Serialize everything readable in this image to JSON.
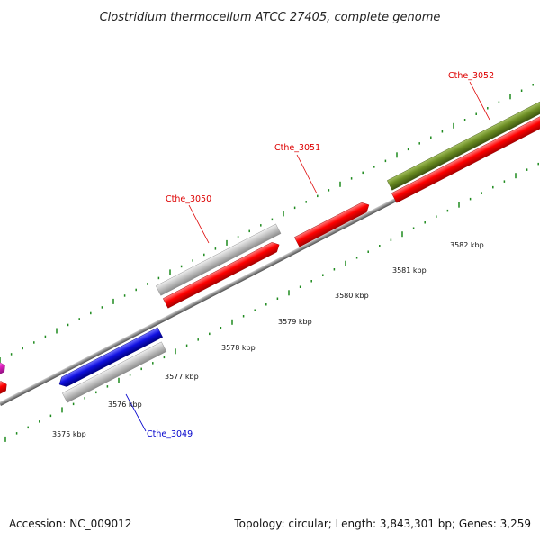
{
  "title": "Clostridium thermocellum ATCC 27405, complete genome",
  "footer": {
    "accession": "Accession: NC_009012",
    "summary": "Topology: circular; Length: 3,843,301 bp; Genes: 3,259"
  },
  "scale": {
    "unit": "kbp",
    "ticks": [
      "3575 kbp",
      "3576 kbp",
      "3577 kbp",
      "3578 kbp",
      "3579 kbp",
      "3580 kbp",
      "3581 kbp",
      "3582 kbp"
    ]
  },
  "gene_labels": [
    "Cthe_3049",
    "Cthe_3050",
    "Cthe_3051",
    "Cthe_3052"
  ],
  "colors": {
    "tick_marks": "#1e8a1e",
    "backbone": "#808080",
    "gene_red": "#ff0000",
    "gene_grey": "#c0c0c0",
    "gene_blue": "#1010e0",
    "gene_olive": "#6b8c23",
    "gene_magenta": "#e020c0",
    "label_red": "#dd0000",
    "label_blue": "#0000cc"
  }
}
